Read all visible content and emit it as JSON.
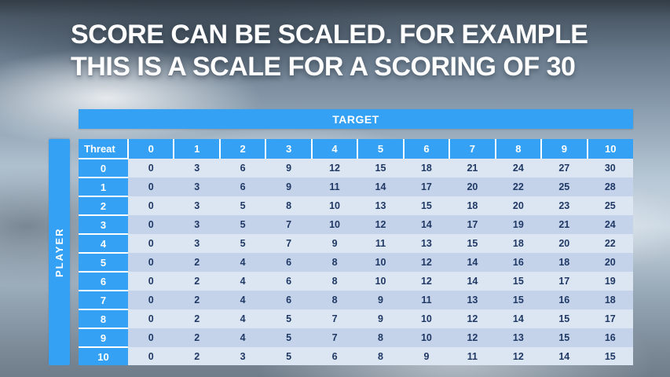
{
  "slide": {
    "title_line1": "SCORE CAN BE SCALED. FOR EXAMPLE",
    "title_line2": "THIS IS A SCALE FOR A SCORING OF 30"
  },
  "table": {
    "target_label": "TARGET",
    "player_label": "PLAYER",
    "threat_label": "Threat"
  },
  "colors": {
    "accent_blue": "#35A1F4",
    "band_light": "#DCE6F3",
    "band_dark": "#C4D3EA",
    "cell_text": "#1F3864",
    "header_text": "#FFFFFF"
  },
  "chart_data": {
    "type": "table",
    "title": "Score scaling matrix for a scoring of 30",
    "x_axis_label": "TARGET",
    "y_axis_label": "PLAYER",
    "corner_label": "Threat",
    "columns": [
      "0",
      "1",
      "2",
      "3",
      "4",
      "5",
      "6",
      "7",
      "8",
      "9",
      "10"
    ],
    "rows": [
      {
        "header": "0",
        "values": [
          0,
          3,
          6,
          9,
          12,
          15,
          18,
          21,
          24,
          27,
          30
        ]
      },
      {
        "header": "1",
        "values": [
          0,
          3,
          6,
          9,
          11,
          14,
          17,
          20,
          22,
          25,
          28
        ]
      },
      {
        "header": "2",
        "values": [
          0,
          3,
          5,
          8,
          10,
          13,
          15,
          18,
          20,
          23,
          25
        ]
      },
      {
        "header": "3",
        "values": [
          0,
          3,
          5,
          7,
          10,
          12,
          14,
          17,
          19,
          21,
          24
        ]
      },
      {
        "header": "4",
        "values": [
          0,
          3,
          5,
          7,
          9,
          11,
          13,
          15,
          18,
          20,
          22
        ]
      },
      {
        "header": "5",
        "values": [
          0,
          2,
          4,
          6,
          8,
          10,
          12,
          14,
          16,
          18,
          20
        ]
      },
      {
        "header": "6",
        "values": [
          0,
          2,
          4,
          6,
          8,
          10,
          12,
          14,
          15,
          17,
          19
        ]
      },
      {
        "header": "7",
        "values": [
          0,
          2,
          4,
          6,
          8,
          9,
          11,
          13,
          15,
          16,
          18
        ]
      },
      {
        "header": "8",
        "values": [
          0,
          2,
          4,
          5,
          7,
          9,
          10,
          12,
          14,
          15,
          17
        ]
      },
      {
        "header": "9",
        "values": [
          0,
          2,
          4,
          5,
          7,
          8,
          10,
          12,
          13,
          15,
          16
        ]
      },
      {
        "header": "10",
        "values": [
          0,
          2,
          3,
          5,
          6,
          8,
          9,
          11,
          12,
          14,
          15
        ]
      }
    ]
  }
}
